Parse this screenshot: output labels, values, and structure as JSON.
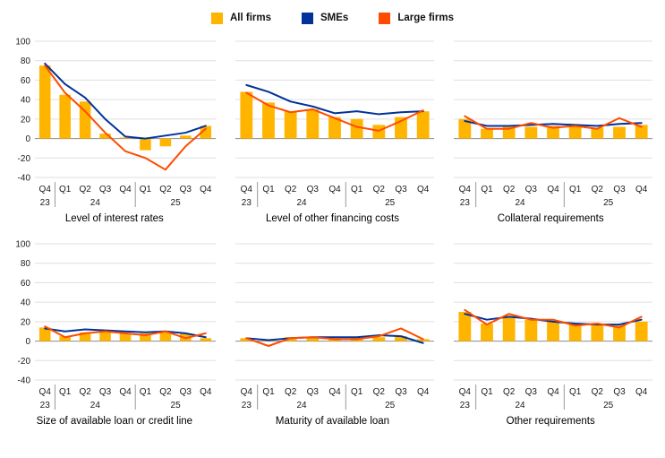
{
  "legend": {
    "items": [
      {
        "label": "All firms",
        "color_key": "all_firms"
      },
      {
        "label": "SMEs",
        "color_key": "smes"
      },
      {
        "label": "Large firms",
        "color_key": "large_firms"
      }
    ]
  },
  "colors": {
    "all_firms": "#FFB400",
    "smes": "#003299",
    "large_firms": "#FF4B00",
    "gridline": "#DFDFDF",
    "zero_line": "#8C8C8C",
    "separator": "#999999",
    "text": "#1A1A1A"
  },
  "axis": {
    "ylim": [
      -40,
      100
    ],
    "ytick_step": 20,
    "grid": true,
    "categories": [
      "Q4",
      "Q1",
      "Q2",
      "Q3",
      "Q4",
      "Q1",
      "Q2",
      "Q3",
      "Q4"
    ],
    "year_groups": [
      {
        "label": "23",
        "from": 0,
        "to": 0
      },
      {
        "label": "24",
        "from": 1,
        "to": 4
      },
      {
        "label": "25",
        "from": 5,
        "to": 8
      }
    ],
    "separators": [
      1,
      5
    ]
  },
  "chart_data": [
    {
      "type": "bar",
      "title": "Level of interest rates",
      "series": [
        {
          "name": "All firms",
          "type": "bar",
          "color_key": "all_firms",
          "values": [
            75,
            45,
            38,
            5,
            1,
            -12,
            -8,
            3,
            13
          ]
        },
        {
          "name": "SMEs",
          "type": "line",
          "color_key": "smes",
          "values": [
            77,
            56,
            42,
            20,
            2,
            0,
            3,
            6,
            13
          ]
        },
        {
          "name": "Large firms",
          "type": "line",
          "color_key": "large_firms",
          "values": [
            75,
            47,
            28,
            6,
            -13,
            -20,
            -32,
            -8,
            10
          ]
        }
      ]
    },
    {
      "type": "bar",
      "title": "Level of other financing costs",
      "series": [
        {
          "name": "All firms",
          "type": "bar",
          "color_key": "all_firms",
          "values": [
            48,
            37,
            28,
            30,
            22,
            20,
            14,
            22,
            28
          ]
        },
        {
          "name": "SMEs",
          "type": "line",
          "color_key": "smes",
          "values": [
            55,
            48,
            38,
            33,
            26,
            28,
            25,
            27,
            28
          ]
        },
        {
          "name": "Large firms",
          "type": "line",
          "color_key": "large_firms",
          "values": [
            47,
            34,
            27,
            30,
            21,
            12,
            8,
            18,
            29
          ]
        }
      ]
    },
    {
      "type": "bar",
      "title": "Collateral requirements",
      "series": [
        {
          "name": "All firms",
          "type": "bar",
          "color_key": "all_firms",
          "values": [
            20,
            10,
            12,
            12,
            13,
            12,
            11,
            12,
            14
          ]
        },
        {
          "name": "SMEs",
          "type": "line",
          "color_key": "smes",
          "values": [
            18,
            13,
            13,
            14,
            15,
            14,
            13,
            15,
            16
          ]
        },
        {
          "name": "Large firms",
          "type": "line",
          "color_key": "large_firms",
          "values": [
            23,
            10,
            10,
            16,
            11,
            13,
            10,
            21,
            12
          ]
        }
      ]
    },
    {
      "type": "bar",
      "title": "Size of available loan or credit line",
      "series": [
        {
          "name": "All firms",
          "type": "bar",
          "color_key": "all_firms",
          "values": [
            14,
            5,
            9,
            9,
            8,
            8,
            9,
            8,
            3
          ]
        },
        {
          "name": "SMEs",
          "type": "line",
          "color_key": "smes",
          "values": [
            13,
            10,
            12,
            11,
            10,
            9,
            10,
            8,
            4
          ]
        },
        {
          "name": "Large firms",
          "type": "line",
          "color_key": "large_firms",
          "values": [
            15,
            4,
            8,
            10,
            8,
            6,
            10,
            3,
            8
          ]
        }
      ]
    },
    {
      "type": "bar",
      "title": "Maturity of available loan",
      "series": [
        {
          "name": "All firms",
          "type": "bar",
          "color_key": "all_firms",
          "values": [
            3,
            2,
            4,
            4,
            3,
            4,
            4,
            5,
            2
          ]
        },
        {
          "name": "SMEs",
          "type": "line",
          "color_key": "smes",
          "values": [
            3,
            1,
            3,
            4,
            4,
            4,
            6,
            5,
            -2
          ]
        },
        {
          "name": "Large firms",
          "type": "line",
          "color_key": "large_firms",
          "values": [
            3,
            -5,
            3,
            4,
            2,
            2,
            5,
            13,
            2
          ]
        }
      ]
    },
    {
      "type": "bar",
      "title": "Other requirements",
      "series": [
        {
          "name": "All firms",
          "type": "bar",
          "color_key": "all_firms",
          "values": [
            30,
            18,
            26,
            22,
            20,
            18,
            17,
            16,
            20
          ]
        },
        {
          "name": "SMEs",
          "type": "line",
          "color_key": "smes",
          "values": [
            28,
            22,
            25,
            23,
            20,
            18,
            17,
            17,
            22
          ]
        },
        {
          "name": "Large firms",
          "type": "line",
          "color_key": "large_firms",
          "values": [
            32,
            17,
            28,
            22,
            22,
            16,
            18,
            14,
            25
          ]
        }
      ]
    }
  ]
}
